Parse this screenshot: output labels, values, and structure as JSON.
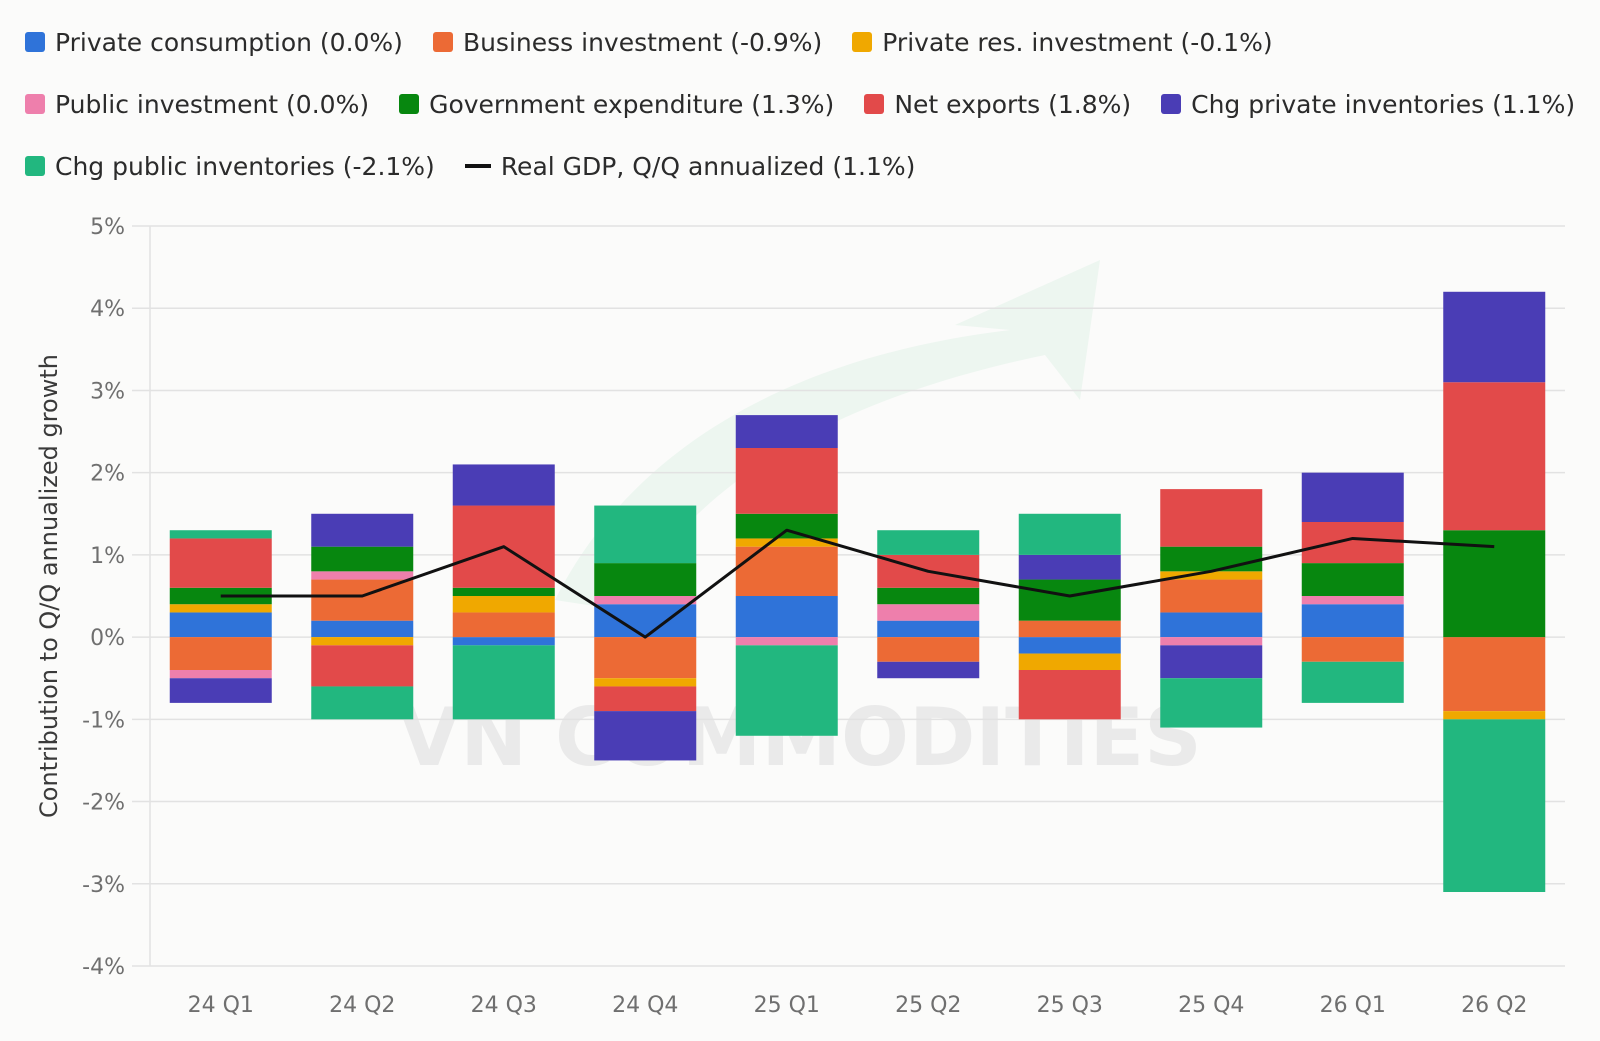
{
  "chart_data": {
    "type": "bar",
    "stacked": true,
    "categories": [
      "24 Q1",
      "24 Q2",
      "24 Q3",
      "24 Q4",
      "25 Q1",
      "25 Q2",
      "25 Q3",
      "25 Q4",
      "26 Q1",
      "26 Q2"
    ],
    "ylabel": "Contribution to Q/Q annualized growth",
    "ylim": [
      -4,
      5
    ],
    "yticks": [
      5,
      4,
      3,
      2,
      1,
      0,
      -1,
      -2,
      -3,
      -4
    ],
    "ytick_labels": [
      "5%",
      "4%",
      "3%",
      "2%",
      "1%",
      "0%",
      "-1%",
      "-2%",
      "-3%",
      "-4%"
    ],
    "grid": true,
    "legend_position": "top",
    "series": [
      {
        "name": "Private consumption (0.0%)",
        "color": "#2f73d9",
        "values": [
          0.3,
          0.2,
          -0.1,
          0.4,
          0.5,
          0.2,
          -0.2,
          0.3,
          0.4,
          0.0
        ]
      },
      {
        "name": "Business investment (-0.9%)",
        "color": "#ec6a35",
        "values": [
          -0.4,
          0.5,
          0.3,
          -0.5,
          0.6,
          -0.3,
          0.2,
          0.4,
          -0.3,
          -0.9
        ]
      },
      {
        "name": "Private res. investment (-0.1%)",
        "color": "#f0a800",
        "values": [
          0.1,
          -0.1,
          0.2,
          -0.1,
          0.1,
          0.0,
          -0.2,
          0.1,
          0.0,
          -0.1
        ]
      },
      {
        "name": "Public investment (0.0%)",
        "color": "#ee7fac",
        "values": [
          -0.1,
          0.1,
          0.0,
          0.1,
          -0.1,
          0.2,
          0.0,
          -0.1,
          0.1,
          0.0
        ]
      },
      {
        "name": "Government expenditure (1.3%)",
        "color": "#07870f",
        "values": [
          0.2,
          0.3,
          0.1,
          0.4,
          0.3,
          0.2,
          0.5,
          0.3,
          0.4,
          1.3
        ]
      },
      {
        "name": "Net exports (1.8%)",
        "color": "#e24a4a",
        "values": [
          0.6,
          -0.5,
          1.0,
          -0.3,
          0.8,
          0.4,
          -0.6,
          0.7,
          0.5,
          1.8
        ]
      },
      {
        "name": "Chg private inventories (1.1%)",
        "color": "#4a3db5",
        "values": [
          -0.3,
          0.4,
          0.5,
          -0.6,
          0.4,
          -0.2,
          0.3,
          -0.4,
          0.6,
          1.1
        ]
      },
      {
        "name": "Chg public inventories (-2.1%)",
        "color": "#22b77f",
        "values": [
          0.1,
          -0.4,
          -0.9,
          0.7,
          -1.1,
          0.3,
          0.5,
          -0.6,
          -0.5,
          -2.1
        ]
      }
    ],
    "line": {
      "name": "Real GDP, Q/Q annualized (1.1%)",
      "color": "#111111",
      "values": [
        0.5,
        0.5,
        1.1,
        0.0,
        1.3,
        0.8,
        0.5,
        0.8,
        1.2,
        1.1
      ]
    }
  },
  "watermark": {
    "text": "VN COMMODITIES",
    "color": "#3bb36b"
  }
}
